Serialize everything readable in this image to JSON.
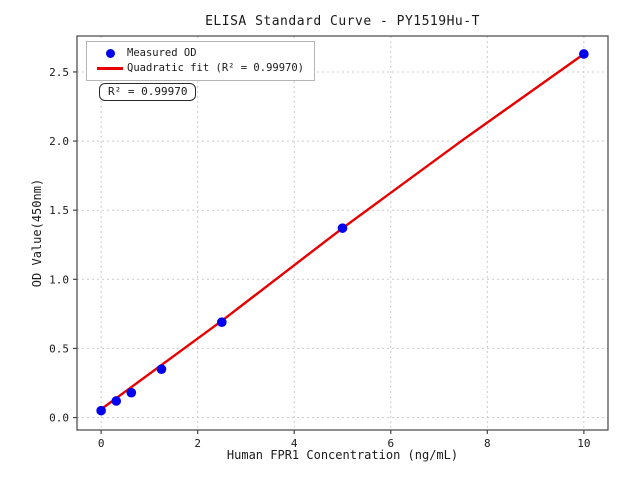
{
  "chart_data": {
    "type": "scatter",
    "title": "ELISA Standard Curve - PY1519Hu-T",
    "xlabel": "Human FPR1 Concentration (ng/mL)",
    "ylabel": "OD Value(450nm)",
    "xlim": [
      -0.5,
      10.5
    ],
    "ylim": [
      -0.09,
      2.76
    ],
    "xticks": [
      0,
      2,
      4,
      6,
      8,
      10
    ],
    "xtick_labels": [
      "0",
      "2",
      "4",
      "6",
      "8",
      "10"
    ],
    "yticks": [
      0.0,
      0.5,
      1.0,
      1.5,
      2.0,
      2.5
    ],
    "ytick_labels": [
      "0.0",
      "0.5",
      "1.0",
      "1.5",
      "2.0",
      "2.5"
    ],
    "grid": true,
    "grid_style": "dashed",
    "legend_position": "upper left",
    "series": [
      {
        "name": "Measured OD",
        "type": "scatter",
        "color": "#0000ee",
        "x": [
          0,
          0.313,
          0.625,
          1.25,
          2.5,
          5,
          10
        ],
        "y": [
          0.05,
          0.12,
          0.18,
          0.35,
          0.69,
          1.37,
          2.63
        ]
      },
      {
        "name": "Quadratic fit (R² = 0.99970)",
        "type": "line",
        "color": "#e80000",
        "x": [
          0,
          2.5,
          5,
          7.5,
          10
        ],
        "y": [
          0.06,
          0.7,
          1.37,
          2.01,
          2.63
        ]
      }
    ],
    "annotation": "R² = 0.99970",
    "r_squared": "0.99970",
    "style": {
      "grid_color": "#cccccc",
      "axis_color": "#444444",
      "text_color": "#1a1a1a"
    }
  }
}
